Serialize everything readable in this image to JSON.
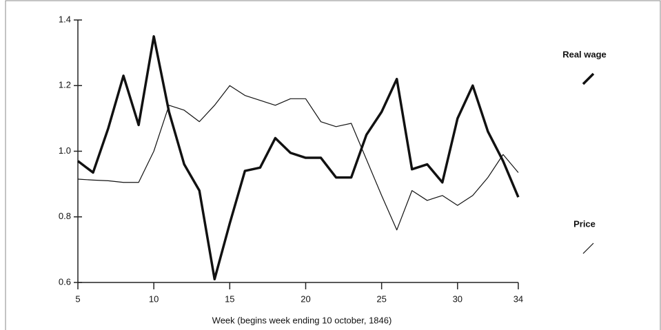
{
  "chart_data": {
    "type": "line",
    "x_label": "Week (begins week ending 10 october, 1846)",
    "x": [
      5,
      6,
      7,
      8,
      9,
      10,
      11,
      12,
      13,
      14,
      15,
      16,
      17,
      18,
      19,
      20,
      21,
      22,
      23,
      24,
      25,
      26,
      27,
      28,
      29,
      30,
      31,
      32,
      33,
      34
    ],
    "series": [
      {
        "name": "Real wage",
        "color": "#111111",
        "width": 3.5,
        "values": [
          0.97,
          0.935,
          1.07,
          1.23,
          1.08,
          1.35,
          1.12,
          0.96,
          0.88,
          0.61,
          0.78,
          0.94,
          0.95,
          1.04,
          0.995,
          0.98,
          0.98,
          0.92,
          0.92,
          1.05,
          1.12,
          1.22,
          0.945,
          0.96,
          0.905,
          1.1,
          1.2,
          1.06,
          0.97,
          0.86
        ]
      },
      {
        "name": "Price",
        "color": "#111111",
        "width": 1.2,
        "values": [
          0.915,
          0.912,
          0.91,
          0.905,
          0.905,
          1.0,
          1.14,
          1.125,
          1.09,
          1.14,
          1.2,
          1.17,
          1.155,
          1.14,
          1.16,
          1.16,
          1.09,
          1.075,
          1.085,
          0.975,
          0.865,
          0.76,
          0.88,
          0.85,
          0.865,
          0.835,
          0.865,
          0.92,
          0.99,
          0.935
        ]
      }
    ],
    "xlim": [
      5,
      35.5
    ],
    "xticks": [
      5,
      10,
      15,
      20,
      25,
      30,
      34
    ],
    "ylim": [
      0.6,
      1.4
    ],
    "yticks": [
      0.6,
      0.8,
      {
        "value": 1,
        "label": "1.0"
      },
      1.2,
      1.4
    ]
  }
}
